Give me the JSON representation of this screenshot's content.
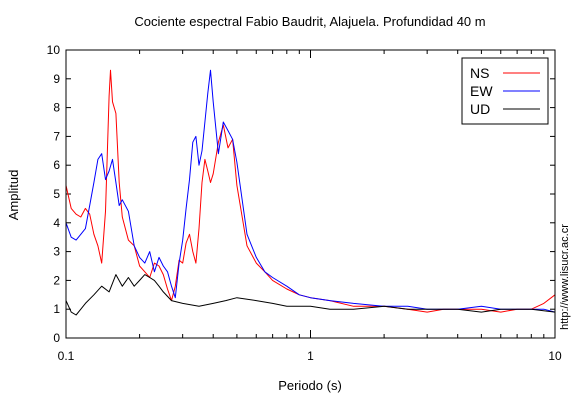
{
  "chart_data": {
    "type": "line",
    "title": "Cociente espectral Fabio Baudrit, Alajuela. Profundidad 40 m",
    "xlabel": "Periodo (s)",
    "ylabel": "Amplitud",
    "x_scale": "log",
    "xlim": [
      0.1,
      10
    ],
    "ylim": [
      0,
      10
    ],
    "x_ticks": [
      0.1,
      1,
      10
    ],
    "x_tick_labels": [
      "0.1",
      "1",
      "10"
    ],
    "y_ticks": [
      0,
      1,
      2,
      3,
      4,
      5,
      6,
      7,
      8,
      9,
      10
    ],
    "grid": false,
    "legend_position": "top-right",
    "side_text": "http://www.lisucr.ac.cr",
    "series": [
      {
        "name": "NS",
        "color": "#ff0000",
        "x": [
          0.1,
          0.105,
          0.11,
          0.115,
          0.12,
          0.125,
          0.13,
          0.135,
          0.14,
          0.145,
          0.15,
          0.152,
          0.155,
          0.16,
          0.165,
          0.17,
          0.18,
          0.19,
          0.2,
          0.21,
          0.22,
          0.23,
          0.24,
          0.25,
          0.26,
          0.27,
          0.28,
          0.29,
          0.3,
          0.31,
          0.32,
          0.33,
          0.34,
          0.35,
          0.36,
          0.37,
          0.38,
          0.39,
          0.4,
          0.42,
          0.44,
          0.46,
          0.48,
          0.5,
          0.55,
          0.6,
          0.65,
          0.7,
          0.8,
          0.9,
          1.0,
          1.2,
          1.5,
          2.0,
          2.5,
          3.0,
          3.5,
          4.0,
          5.0,
          6.0,
          7.0,
          8.0,
          9.0,
          10.0
        ],
        "y": [
          5.3,
          4.5,
          4.3,
          4.2,
          4.5,
          4.3,
          3.6,
          3.2,
          2.6,
          4.4,
          8.4,
          9.3,
          8.2,
          7.8,
          5.4,
          4.2,
          3.4,
          3.2,
          2.5,
          2.3,
          2.1,
          2.6,
          2.5,
          2.2,
          1.7,
          1.3,
          1.8,
          2.7,
          2.6,
          3.3,
          3.6,
          3.0,
          2.6,
          3.8,
          5.4,
          6.2,
          5.8,
          5.4,
          5.7,
          6.8,
          7.4,
          6.6,
          6.9,
          5.3,
          3.2,
          2.6,
          2.3,
          2.0,
          1.7,
          1.5,
          1.4,
          1.3,
          1.1,
          1.1,
          1.0,
          0.9,
          1.0,
          1.0,
          1.0,
          0.9,
          1.0,
          1.0,
          1.2,
          1.5
        ]
      },
      {
        "name": "EW",
        "color": "#0000ff",
        "x": [
          0.1,
          0.105,
          0.11,
          0.115,
          0.12,
          0.125,
          0.13,
          0.135,
          0.14,
          0.145,
          0.15,
          0.155,
          0.16,
          0.165,
          0.17,
          0.18,
          0.19,
          0.2,
          0.21,
          0.22,
          0.23,
          0.24,
          0.25,
          0.26,
          0.27,
          0.28,
          0.29,
          0.3,
          0.31,
          0.32,
          0.33,
          0.34,
          0.35,
          0.36,
          0.37,
          0.38,
          0.39,
          0.4,
          0.42,
          0.44,
          0.46,
          0.48,
          0.5,
          0.55,
          0.6,
          0.65,
          0.7,
          0.8,
          0.9,
          1.0,
          1.2,
          1.5,
          2.0,
          2.5,
          3.0,
          3.5,
          4.0,
          5.0,
          6.0,
          7.0,
          8.0,
          9.0,
          10.0
        ],
        "y": [
          4.0,
          3.5,
          3.4,
          3.6,
          3.8,
          4.6,
          5.4,
          6.2,
          6.4,
          5.5,
          5.8,
          6.2,
          5.4,
          4.6,
          4.8,
          4.4,
          3.2,
          2.8,
          2.6,
          3.0,
          2.3,
          2.8,
          2.5,
          2.3,
          1.8,
          1.4,
          2.6,
          3.4,
          4.5,
          5.5,
          6.8,
          7.0,
          6.0,
          6.5,
          7.5,
          8.5,
          9.3,
          8.2,
          6.4,
          7.5,
          7.2,
          6.9,
          6.1,
          3.6,
          2.8,
          2.3,
          2.1,
          1.8,
          1.5,
          1.4,
          1.3,
          1.2,
          1.1,
          1.1,
          1.0,
          1.0,
          1.0,
          1.1,
          1.0,
          1.0,
          1.0,
          1.0,
          0.9
        ]
      },
      {
        "name": "UD",
        "color": "#000000",
        "x": [
          0.1,
          0.105,
          0.11,
          0.115,
          0.12,
          0.13,
          0.14,
          0.15,
          0.16,
          0.17,
          0.18,
          0.19,
          0.2,
          0.21,
          0.22,
          0.23,
          0.24,
          0.25,
          0.27,
          0.3,
          0.35,
          0.4,
          0.45,
          0.5,
          0.6,
          0.7,
          0.8,
          1.0,
          1.2,
          1.5,
          2.0,
          2.5,
          3.0,
          4.0,
          5.0,
          6.0,
          7.0,
          8.0,
          10.0
        ],
        "y": [
          1.3,
          0.9,
          0.8,
          1.0,
          1.2,
          1.5,
          1.8,
          1.6,
          2.2,
          1.8,
          2.1,
          1.8,
          2.0,
          2.2,
          2.1,
          2.0,
          1.8,
          1.6,
          1.3,
          1.2,
          1.1,
          1.2,
          1.3,
          1.4,
          1.3,
          1.2,
          1.1,
          1.1,
          1.0,
          1.0,
          1.1,
          1.0,
          1.0,
          1.0,
          0.9,
          1.0,
          1.0,
          1.0,
          0.9
        ]
      }
    ]
  }
}
